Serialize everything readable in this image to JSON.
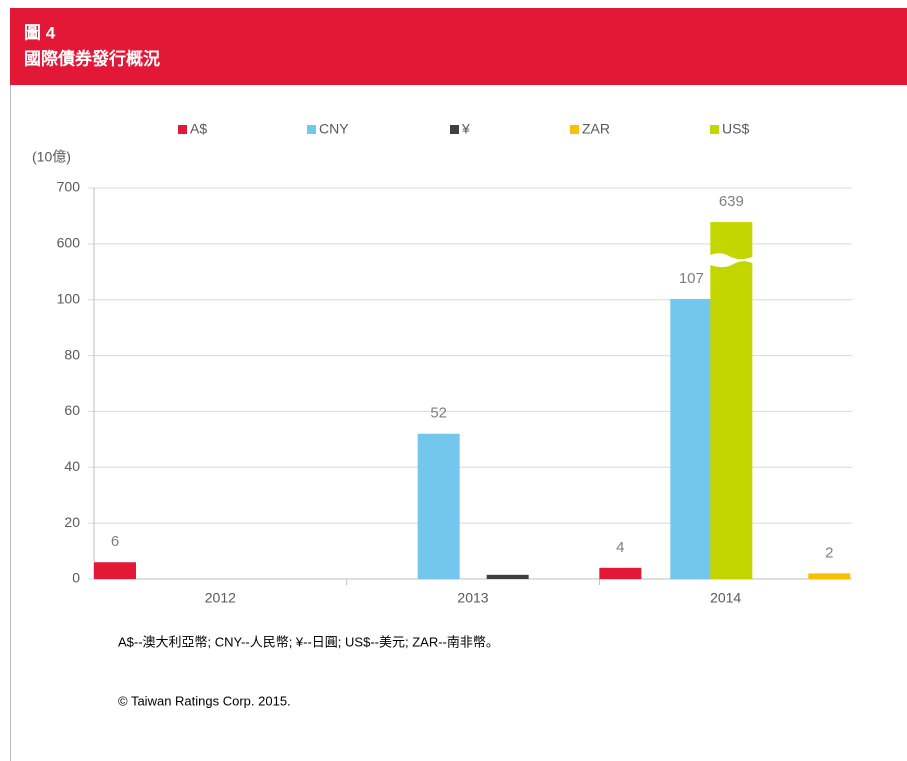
{
  "header": {
    "figure": "圖 4",
    "title": "國際債券發行概況"
  },
  "chart_data": {
    "type": "bar",
    "y_label": "(10億)",
    "categories": [
      "2012",
      "2013",
      "2014"
    ],
    "series": [
      {
        "name": "A$",
        "color": "#e31837",
        "values": [
          6,
          null,
          4
        ]
      },
      {
        "name": "CNY",
        "color": "#74c7ec",
        "values": [
          null,
          52,
          107
        ]
      },
      {
        "name": "¥",
        "color": "#404040",
        "values": [
          null,
          1.5,
          null
        ],
        "labels": false
      },
      {
        "name": "ZAR",
        "color": "#f7c000",
        "values": [
          null,
          null,
          2
        ]
      },
      {
        "name": "US$",
        "color": "#c4d600",
        "values": [
          null,
          null,
          639
        ]
      }
    ],
    "ylim": [
      0,
      700
    ],
    "yticks": [
      0,
      20,
      40,
      60,
      80,
      100,
      600,
      700
    ],
    "axis_break": true
  },
  "notes": {
    "legend_note": "A$--澳大利亞幣; CNY--人民幣; ¥--日圓; US$--美元;  ZAR--南非幣。",
    "copyright": "© Taiwan Ratings Corp. 2015."
  }
}
